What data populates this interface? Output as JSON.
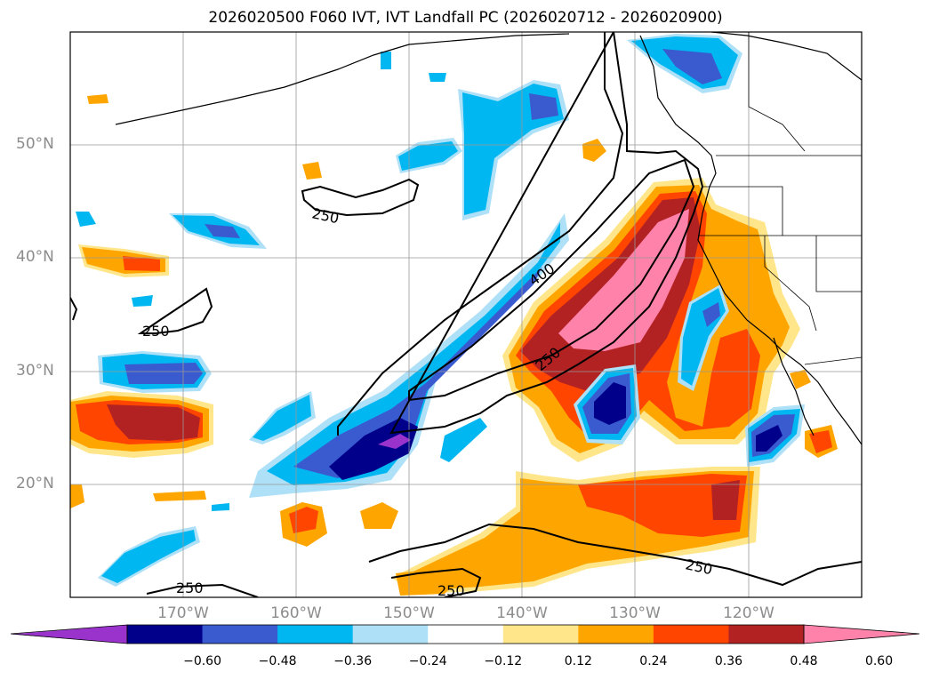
{
  "title": "2026020500 F060 IVT, IVT Landfall PC (2026020712 - 2026020900)",
  "lat_labels": [
    "50°N",
    "40°N",
    "30°N",
    "20°N"
  ],
  "lon_labels": [
    "170°W",
    "160°W",
    "150°W",
    "140°W",
    "130°W",
    "120°W"
  ],
  "contour_labels": [
    "250",
    "250",
    "400",
    "250",
    "250",
    "250",
    "250"
  ],
  "colorbar": {
    "ticks": [
      "−0.60",
      "−0.48",
      "−0.36",
      "−0.24",
      "−0.12",
      "0.12",
      "0.24",
      "0.36",
      "0.48",
      "0.60"
    ],
    "colors": [
      "#9933cc",
      "#00008b",
      "#3a5bd0",
      "#00b7f1",
      "#aee0f7",
      "#ffffff",
      "#ffe68a",
      "#ffa500",
      "#ff4500",
      "#b22222",
      "#ff82ab"
    ]
  }
}
